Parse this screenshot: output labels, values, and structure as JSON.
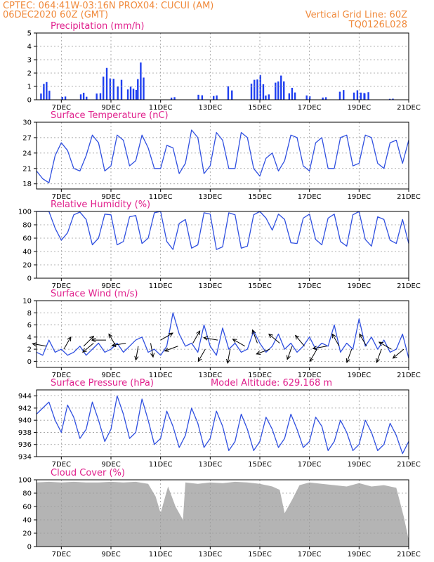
{
  "header": {
    "line1_left": "CPTEC:   064:41W-03:16N   PROX04: CUCUI (AM)",
    "line2_left": "06DEC2020 60Z (GMT)",
    "line2_right": "Vertical Grid Line: 60Z",
    "line3_right": "TQ0126L028"
  },
  "colors": {
    "header_text": "#f08a3c",
    "panel_title": "#e0208c",
    "series_line": "#3050e0",
    "precip_bar": "#1f3ff0",
    "cloud_fill": "#b4b4b4",
    "grid": "#9a9a9a"
  },
  "chart_data": [
    {
      "type": "bar",
      "title": "Precipitation (mm/h)",
      "x_tick_labels": [
        "7DEC",
        "9DEC",
        "11DEC",
        "13DEC",
        "15DEC",
        "17DEC",
        "19DEC",
        "21DEC"
      ],
      "ylim": [
        0,
        5
      ],
      "y_ticks": [
        "0",
        "1",
        "2",
        "3",
        "4",
        "5"
      ],
      "bursts": [
        {
          "day": 6.35,
          "width": 0.45,
          "peak": 1.4
        },
        {
          "day": 7.1,
          "width": 0.25,
          "peak": 0.3
        },
        {
          "day": 7.9,
          "width": 0.35,
          "peak": 0.6
        },
        {
          "day": 8.5,
          "width": 0.3,
          "peak": 0.8
        },
        {
          "day": 8.9,
          "width": 0.55,
          "peak": 2.9
        },
        {
          "day": 9.35,
          "width": 0.3,
          "peak": 2.0
        },
        {
          "day": 9.85,
          "width": 0.45,
          "peak": 1.3
        },
        {
          "day": 10.2,
          "width": 0.35,
          "peak": 2.8
        },
        {
          "day": 11.5,
          "width": 0.25,
          "peak": 0.3
        },
        {
          "day": 12.6,
          "width": 0.3,
          "peak": 0.6
        },
        {
          "day": 13.2,
          "width": 0.25,
          "peak": 0.4
        },
        {
          "day": 13.8,
          "width": 0.3,
          "peak": 1.3
        },
        {
          "day": 14.9,
          "width": 0.6,
          "peak": 2.2
        },
        {
          "day": 15.3,
          "width": 0.25,
          "peak": 0.5
        },
        {
          "day": 15.8,
          "width": 0.45,
          "peak": 2.3
        },
        {
          "day": 16.3,
          "width": 0.35,
          "peak": 0.9
        },
        {
          "day": 16.95,
          "width": 0.25,
          "peak": 0.4
        },
        {
          "day": 17.6,
          "width": 0.25,
          "peak": 0.3
        },
        {
          "day": 18.3,
          "width": 0.3,
          "peak": 0.9
        },
        {
          "day": 19.0,
          "width": 0.55,
          "peak": 0.9
        },
        {
          "day": 19.3,
          "width": 0.3,
          "peak": 0.7
        },
        {
          "day": 20.3,
          "width": 0.25,
          "peak": 0.1
        }
      ]
    },
    {
      "type": "line",
      "title": "Surface Temperature (nC)",
      "x_tick_labels": [
        "7DEC",
        "9DEC",
        "11DEC",
        "13DEC",
        "15DEC",
        "17DEC",
        "19DEC",
        "21DEC"
      ],
      "ylim": [
        17,
        30
      ],
      "y_ticks": [
        "18",
        "21",
        "24",
        "27",
        "30"
      ],
      "x": [
        6.0,
        6.25,
        6.5,
        6.75,
        7.0,
        7.25,
        7.5,
        7.75,
        8.0,
        8.25,
        8.5,
        8.75,
        9.0,
        9.25,
        9.5,
        9.75,
        10.0,
        10.25,
        10.5,
        10.75,
        11.0,
        11.25,
        11.5,
        11.75,
        12.0,
        12.25,
        12.5,
        12.75,
        13.0,
        13.25,
        13.5,
        13.75,
        14.0,
        14.25,
        14.5,
        14.75,
        15.0,
        15.25,
        15.5,
        15.75,
        16.0,
        16.25,
        16.5,
        16.75,
        17.0,
        17.25,
        17.5,
        17.75,
        18.0,
        18.25,
        18.5,
        18.75,
        19.0,
        19.25,
        19.5,
        19.75,
        20.0,
        20.25,
        20.5,
        20.75,
        21.0
      ],
      "y": [
        20.5,
        19.0,
        18.2,
        23.5,
        26.0,
        24.5,
        21.0,
        20.5,
        23.5,
        27.5,
        26.0,
        20.5,
        21.5,
        27.5,
        26.5,
        21.5,
        22.5,
        27.5,
        25.0,
        21.0,
        21.0,
        25.5,
        25.0,
        20.0,
        22.0,
        28.5,
        27.0,
        20.0,
        21.5,
        28.0,
        26.5,
        21.0,
        21.0,
        28.0,
        27.0,
        21.0,
        19.5,
        23.0,
        24.0,
        20.5,
        22.5,
        27.5,
        27.0,
        21.5,
        20.5,
        26.0,
        27.0,
        21.0,
        21.0,
        27.0,
        27.5,
        21.5,
        22.0,
        27.5,
        27.0,
        22.0,
        21.0,
        26.0,
        26.5,
        22.0,
        26.5
      ]
    },
    {
      "type": "line",
      "title": "Relative Humidity (%)",
      "x_tick_labels": [
        "7DEC",
        "9DEC",
        "11DEC",
        "13DEC",
        "15DEC",
        "17DEC",
        "19DEC",
        "21DEC"
      ],
      "ylim": [
        0,
        100
      ],
      "y_ticks": [
        "0",
        "20",
        "40",
        "60",
        "80",
        "100"
      ],
      "x": [
        6.0,
        6.25,
        6.5,
        6.75,
        7.0,
        7.25,
        7.5,
        7.75,
        8.0,
        8.25,
        8.5,
        8.75,
        9.0,
        9.25,
        9.5,
        9.75,
        10.0,
        10.25,
        10.5,
        10.75,
        11.0,
        11.25,
        11.5,
        11.75,
        12.0,
        12.25,
        12.5,
        12.75,
        13.0,
        13.25,
        13.5,
        13.75,
        14.0,
        14.25,
        14.5,
        14.75,
        15.0,
        15.25,
        15.5,
        15.75,
        16.0,
        16.25,
        16.5,
        16.75,
        17.0,
        17.25,
        17.5,
        17.75,
        18.0,
        18.25,
        18.5,
        18.75,
        19.0,
        19.25,
        19.5,
        19.75,
        20.0,
        20.25,
        20.5,
        20.75,
        21.0
      ],
      "y": [
        100,
        100,
        100,
        75,
        57,
        68,
        95,
        99,
        88,
        50,
        60,
        96,
        95,
        50,
        55,
        92,
        94,
        52,
        60,
        98,
        100,
        55,
        43,
        82,
        88,
        45,
        50,
        98,
        96,
        43,
        47,
        98,
        95,
        45,
        48,
        95,
        100,
        90,
        72,
        96,
        88,
        53,
        52,
        90,
        96,
        58,
        50,
        90,
        96,
        55,
        48,
        95,
        100,
        58,
        48,
        92,
        88,
        57,
        52,
        88,
        52
      ]
    },
    {
      "type": "line",
      "title": "Surface Wind (m/s)",
      "x_tick_labels": [
        "7DEC",
        "9DEC",
        "11DEC",
        "13DEC",
        "15DEC",
        "17DEC",
        "19DEC",
        "21DEC"
      ],
      "ylim": [
        -1,
        10
      ],
      "y_ticks": [
        "0",
        "2",
        "4",
        "6",
        "8",
        "10"
      ],
      "x": [
        6.0,
        6.25,
        6.5,
        6.75,
        7.0,
        7.25,
        7.5,
        7.75,
        8.0,
        8.25,
        8.5,
        8.75,
        9.0,
        9.25,
        9.5,
        9.75,
        10.0,
        10.25,
        10.5,
        10.75,
        11.0,
        11.25,
        11.5,
        11.75,
        12.0,
        12.25,
        12.5,
        12.75,
        13.0,
        13.25,
        13.5,
        13.75,
        14.0,
        14.25,
        14.5,
        14.75,
        15.0,
        15.25,
        15.5,
        15.75,
        16.0,
        16.25,
        16.5,
        16.75,
        17.0,
        17.25,
        17.5,
        17.75,
        18.0,
        18.25,
        18.5,
        18.75,
        19.0,
        19.25,
        19.5,
        19.75,
        20.0,
        20.25,
        20.5,
        20.75,
        21.0
      ],
      "y": [
        1.5,
        1.0,
        3.5,
        1.5,
        2.0,
        1.0,
        1.5,
        2.5,
        1.0,
        2.0,
        3.0,
        1.5,
        2.0,
        3.0,
        1.5,
        2.5,
        3.5,
        4.0,
        1.5,
        2.0,
        1.0,
        2.5,
        8.0,
        4.5,
        2.5,
        3.0,
        1.5,
        6.0,
        2.5,
        1.0,
        5.5,
        2.0,
        3.0,
        1.5,
        2.0,
        5.0,
        3.0,
        1.5,
        2.5,
        4.5,
        2.0,
        3.0,
        1.5,
        2.5,
        4.0,
        2.0,
        3.0,
        2.5,
        6.0,
        1.5,
        3.0,
        2.0,
        7.0,
        2.5,
        4.0,
        2.0,
        3.5,
        1.5,
        2.0,
        4.5,
        0.5
      ],
      "arrows": [
        {
          "day": 6.4,
          "speed": 2.5,
          "dir_deg": 280
        },
        {
          "day": 7.1,
          "speed": 2.0,
          "dir_deg": 30
        },
        {
          "day": 7.9,
          "speed": 2.5,
          "dir_deg": 45
        },
        {
          "day": 8.3,
          "speed": 3.0,
          "dir_deg": 230
        },
        {
          "day": 8.8,
          "speed": 3.5,
          "dir_deg": 270
        },
        {
          "day": 9.2,
          "speed": 2.5,
          "dir_deg": 330
        },
        {
          "day": 9.6,
          "speed": 3.0,
          "dir_deg": 260
        },
        {
          "day": 10.1,
          "speed": 2.5,
          "dir_deg": 190
        },
        {
          "day": 10.6,
          "speed": 3.0,
          "dir_deg": 170
        },
        {
          "day": 11.0,
          "speed": 3.5,
          "dir_deg": 60
        },
        {
          "day": 11.7,
          "speed": 2.5,
          "dir_deg": 250
        },
        {
          "day": 12.3,
          "speed": 3.0,
          "dir_deg": 30
        },
        {
          "day": 12.8,
          "speed": 2.0,
          "dir_deg": 210
        },
        {
          "day": 13.3,
          "speed": 3.5,
          "dir_deg": 280
        },
        {
          "day": 13.8,
          "speed": 2.0,
          "dir_deg": 190
        },
        {
          "day": 14.4,
          "speed": 2.5,
          "dir_deg": 300
        },
        {
          "day": 14.9,
          "speed": 3.0,
          "dir_deg": 340
        },
        {
          "day": 15.4,
          "speed": 2.0,
          "dir_deg": 250
        },
        {
          "day": 15.8,
          "speed": 3.0,
          "dir_deg": 310
        },
        {
          "day": 16.3,
          "speed": 2.5,
          "dir_deg": 200
        },
        {
          "day": 16.8,
          "speed": 2.5,
          "dir_deg": 320
        },
        {
          "day": 17.3,
          "speed": 2.0,
          "dir_deg": 210
        },
        {
          "day": 17.7,
          "speed": 2.5,
          "dir_deg": 260
        },
        {
          "day": 18.2,
          "speed": 2.5,
          "dir_deg": 330
        },
        {
          "day": 18.7,
          "speed": 2.0,
          "dir_deg": 200
        },
        {
          "day": 19.3,
          "speed": 2.5,
          "dir_deg": 330
        },
        {
          "day": 19.9,
          "speed": 2.0,
          "dir_deg": 200
        },
        {
          "day": 20.3,
          "speed": 2.0,
          "dir_deg": 300
        },
        {
          "day": 20.8,
          "speed": 2.0,
          "dir_deg": 230
        }
      ]
    },
    {
      "type": "line",
      "title": "Surface Pressure (hPa)",
      "subtitle": "Model Altitude: 629.168 m",
      "x_tick_labels": [
        "7DEC",
        "9DEC",
        "11DEC",
        "13DEC",
        "15DEC",
        "17DEC",
        "19DEC",
        "21DEC"
      ],
      "ylim": [
        934,
        945
      ],
      "y_ticks": [
        "934",
        "936",
        "938",
        "940",
        "942",
        "944"
      ],
      "x": [
        6.0,
        6.25,
        6.5,
        6.75,
        7.0,
        7.25,
        7.5,
        7.75,
        8.0,
        8.25,
        8.5,
        8.75,
        9.0,
        9.25,
        9.5,
        9.75,
        10.0,
        10.25,
        10.5,
        10.75,
        11.0,
        11.25,
        11.5,
        11.75,
        12.0,
        12.25,
        12.5,
        12.75,
        13.0,
        13.25,
        13.5,
        13.75,
        14.0,
        14.25,
        14.5,
        14.75,
        15.0,
        15.25,
        15.5,
        15.75,
        16.0,
        16.25,
        16.5,
        16.75,
        17.0,
        17.25,
        17.5,
        17.75,
        18.0,
        18.25,
        18.5,
        18.75,
        19.0,
        19.25,
        19.5,
        19.75,
        20.0,
        20.25,
        20.5,
        20.75,
        21.0
      ],
      "y": [
        941.0,
        942.0,
        943.0,
        940.0,
        938.0,
        942.5,
        940.5,
        937.0,
        938.5,
        943.0,
        940.0,
        936.5,
        938.5,
        944.0,
        941.0,
        937.0,
        938.0,
        943.5,
        940.0,
        936.0,
        937.0,
        941.5,
        939.0,
        935.5,
        937.5,
        942.0,
        939.5,
        935.5,
        937.0,
        941.5,
        939.0,
        935.0,
        936.5,
        941.0,
        938.5,
        935.0,
        936.5,
        940.5,
        938.5,
        935.5,
        937.0,
        941.0,
        938.5,
        935.5,
        936.5,
        940.5,
        939.0,
        935.0,
        936.5,
        940.0,
        938.0,
        935.0,
        936.0,
        940.0,
        938.0,
        935.0,
        936.0,
        939.5,
        937.5,
        934.5,
        936.5
      ]
    },
    {
      "type": "area",
      "title": "Cloud Cover (%)",
      "x_tick_labels": [
        "7DEC",
        "9DEC",
        "11DEC",
        "13DEC",
        "15DEC",
        "17DEC",
        "19DEC",
        "21DEC"
      ],
      "ylim": [
        0,
        100
      ],
      "y_ticks": [
        "0",
        "20",
        "40",
        "60",
        "80",
        "100"
      ],
      "x": [
        6.0,
        6.5,
        7.0,
        7.5,
        8.0,
        8.5,
        9.0,
        9.5,
        10.0,
        10.5,
        10.8,
        11.0,
        11.3,
        11.6,
        11.9,
        12.0,
        12.5,
        13.0,
        13.5,
        14.0,
        14.5,
        15.0,
        15.5,
        15.8,
        16.0,
        16.3,
        16.6,
        17.0,
        17.5,
        18.0,
        18.5,
        19.0,
        19.5,
        20.0,
        20.5,
        20.8,
        21.0
      ],
      "y": [
        96,
        97,
        96,
        97,
        96,
        96,
        97,
        96,
        97,
        94,
        75,
        50,
        90,
        60,
        40,
        96,
        94,
        96,
        95,
        97,
        96,
        94,
        90,
        85,
        50,
        70,
        92,
        96,
        94,
        92,
        90,
        95,
        90,
        92,
        88,
        45,
        10
      ]
    }
  ]
}
